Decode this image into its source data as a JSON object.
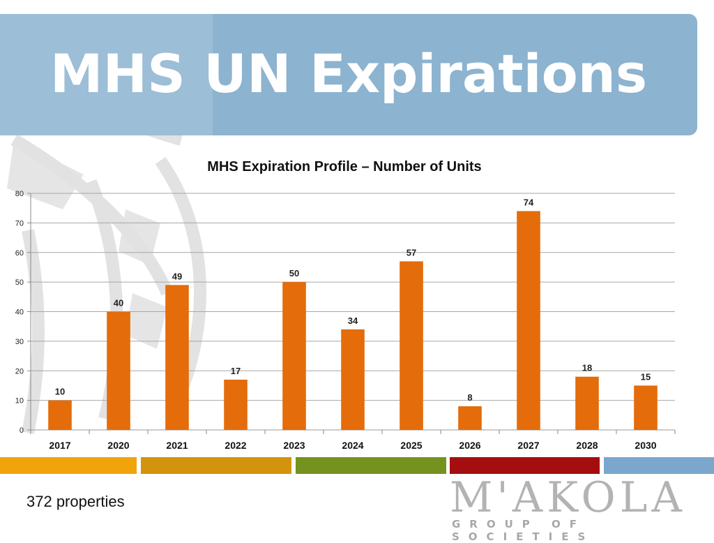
{
  "slide": {
    "title": "MHS UN Expirations",
    "footer_note": "372 properties"
  },
  "logo": {
    "name": "M'AKOLA",
    "subtitle": "GROUP OF SOCIETIES"
  },
  "colors": {
    "banner": "#8cb3cf",
    "bar": "#e46c0a",
    "stripe_orange": "#f0a30a",
    "stripe_gold": "#d4930c",
    "stripe_green": "#76921e",
    "stripe_red": "#a50e0e",
    "stripe_blue": "#7aa7cb"
  },
  "chart_data": {
    "type": "bar",
    "title": "MHS Expiration Profile – Number of Units",
    "categories": [
      "2017",
      "2020",
      "2021",
      "2022",
      "2023",
      "2024",
      "2025",
      "2026",
      "2027",
      "2028",
      "2030"
    ],
    "values": [
      10,
      40,
      49,
      17,
      50,
      34,
      57,
      8,
      74,
      18,
      15
    ],
    "xlabel": "",
    "ylabel": "",
    "ylim": [
      0,
      80
    ],
    "yticks": [
      0,
      10,
      20,
      30,
      40,
      50,
      60,
      70,
      80
    ],
    "grid": true,
    "legend": "none",
    "data_labels": true
  }
}
